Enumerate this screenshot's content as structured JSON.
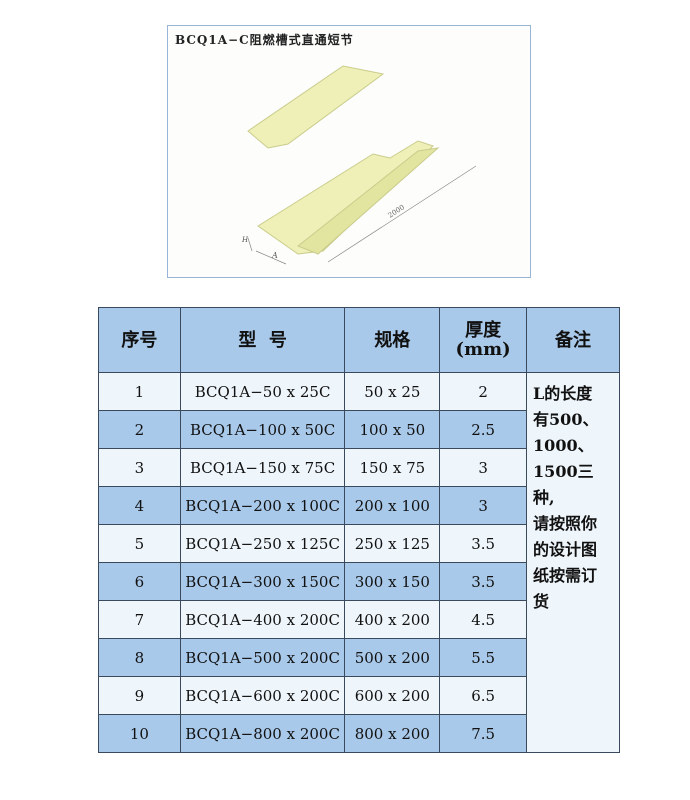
{
  "figure": {
    "title": "BCQ1A−C阻燃槽式直通短节",
    "dimension_labels": {
      "length": "2000",
      "width": "A",
      "height": "H"
    }
  },
  "table": {
    "headers": [
      "序号",
      "型  号",
      "规格",
      "厚度",
      "(mm)",
      "备注"
    ],
    "rows": [
      {
        "no": "1",
        "model": "BCQ1A−50 x 25C",
        "spec": "50 x 25",
        "thickness": "2"
      },
      {
        "no": "2",
        "model": "BCQ1A−100 x 50C",
        "spec": "100 x 50",
        "thickness": "2.5"
      },
      {
        "no": "3",
        "model": "BCQ1A−150 x 75C",
        "spec": "150 x 75",
        "thickness": "3"
      },
      {
        "no": "4",
        "model": "BCQ1A−200 x 100C",
        "spec": "200 x 100",
        "thickness": "3"
      },
      {
        "no": "5",
        "model": "BCQ1A−250 x 125C",
        "spec": "250 x 125",
        "thickness": "3.5"
      },
      {
        "no": "6",
        "model": "BCQ1A−300 x 150C",
        "spec": "300 x 150",
        "thickness": "3.5"
      },
      {
        "no": "7",
        "model": "BCQ1A−400 x 200C",
        "spec": "400 x 200",
        "thickness": "4.5"
      },
      {
        "no": "8",
        "model": "BCQ1A−500 x 200C",
        "spec": "500 x 200",
        "thickness": "5.5"
      },
      {
        "no": "9",
        "model": "BCQ1A−600 x 200C",
        "spec": "600 x 200",
        "thickness": "6.5"
      },
      {
        "no": "10",
        "model": "BCQ1A−800 x 200C",
        "spec": "800 x 200",
        "thickness": "7.5"
      }
    ],
    "note_lines": [
      "L的长度",
      "有500、",
      "1000、",
      "1500三种,",
      "请按照你",
      "的设计图",
      "纸按需订",
      "货"
    ]
  }
}
